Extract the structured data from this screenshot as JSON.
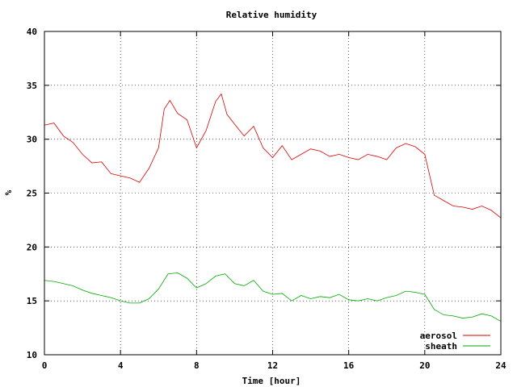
{
  "chart_data": {
    "type": "line",
    "title": "Relative humidity",
    "xlabel": "Time [hour]",
    "ylabel": "%",
    "xlim": [
      0,
      24
    ],
    "ylim": [
      10,
      40
    ],
    "xticks": [
      0,
      4,
      8,
      12,
      16,
      20,
      24
    ],
    "yticks": [
      10,
      15,
      20,
      25,
      30,
      35,
      40
    ],
    "grid": true,
    "legend_position": "bottom-right",
    "colors": {
      "aerosol": "#dd0000",
      "sheath": "#00aa00"
    },
    "series": [
      {
        "name": "aerosol",
        "x": [
          0,
          0.5,
          1,
          1.5,
          2,
          2.5,
          3,
          3.5,
          4,
          4.5,
          5,
          5.5,
          6,
          6.3,
          6.6,
          7,
          7.5,
          8,
          8.5,
          9,
          9.3,
          9.6,
          10,
          10.5,
          11,
          11.5,
          12,
          12.5,
          13,
          13.5,
          14,
          14.5,
          15,
          15.5,
          16,
          16.5,
          17,
          17.5,
          18,
          18.5,
          19,
          19.5,
          20,
          20.5,
          21,
          21.5,
          22,
          22.5,
          23,
          23.5,
          24
        ],
        "values": [
          31.3,
          31.5,
          30.3,
          29.7,
          28.6,
          27.8,
          27.9,
          26.8,
          26.6,
          26.4,
          26.0,
          27.3,
          29.2,
          32.8,
          33.6,
          32.4,
          31.8,
          29.2,
          30.8,
          33.5,
          34.2,
          32.3,
          31.4,
          30.3,
          31.2,
          29.2,
          28.3,
          29.4,
          28.1,
          28.6,
          29.1,
          28.9,
          28.4,
          28.6,
          28.3,
          28.1,
          28.6,
          28.4,
          28.1,
          29.2,
          29.6,
          29.3,
          28.6,
          24.8,
          24.3,
          23.8,
          23.7,
          23.5,
          23.8,
          23.4,
          22.7
        ]
      },
      {
        "name": "sheath",
        "x": [
          0,
          0.5,
          1,
          1.5,
          2,
          2.5,
          3,
          3.5,
          4,
          4.5,
          5,
          5.5,
          6,
          6.5,
          7,
          7.5,
          8,
          8.5,
          9,
          9.5,
          10,
          10.5,
          11,
          11.5,
          12,
          12.5,
          13,
          13.5,
          14,
          14.5,
          15,
          15.5,
          16,
          16.5,
          17,
          17.5,
          18,
          18.5,
          19,
          19.5,
          20,
          20.5,
          21,
          21.5,
          22,
          22.5,
          23,
          23.5,
          24
        ],
        "values": [
          16.9,
          16.8,
          16.6,
          16.4,
          16.0,
          15.7,
          15.5,
          15.3,
          15.0,
          14.8,
          14.8,
          15.2,
          16.1,
          17.5,
          17.6,
          17.1,
          16.2,
          16.6,
          17.3,
          17.5,
          16.6,
          16.4,
          16.9,
          15.9,
          15.6,
          15.7,
          15.0,
          15.5,
          15.2,
          15.4,
          15.3,
          15.6,
          15.1,
          15.0,
          15.2,
          15.0,
          15.3,
          15.5,
          15.9,
          15.8,
          15.6,
          14.2,
          13.7,
          13.6,
          13.4,
          13.5,
          13.8,
          13.6,
          13.1
        ]
      }
    ]
  }
}
